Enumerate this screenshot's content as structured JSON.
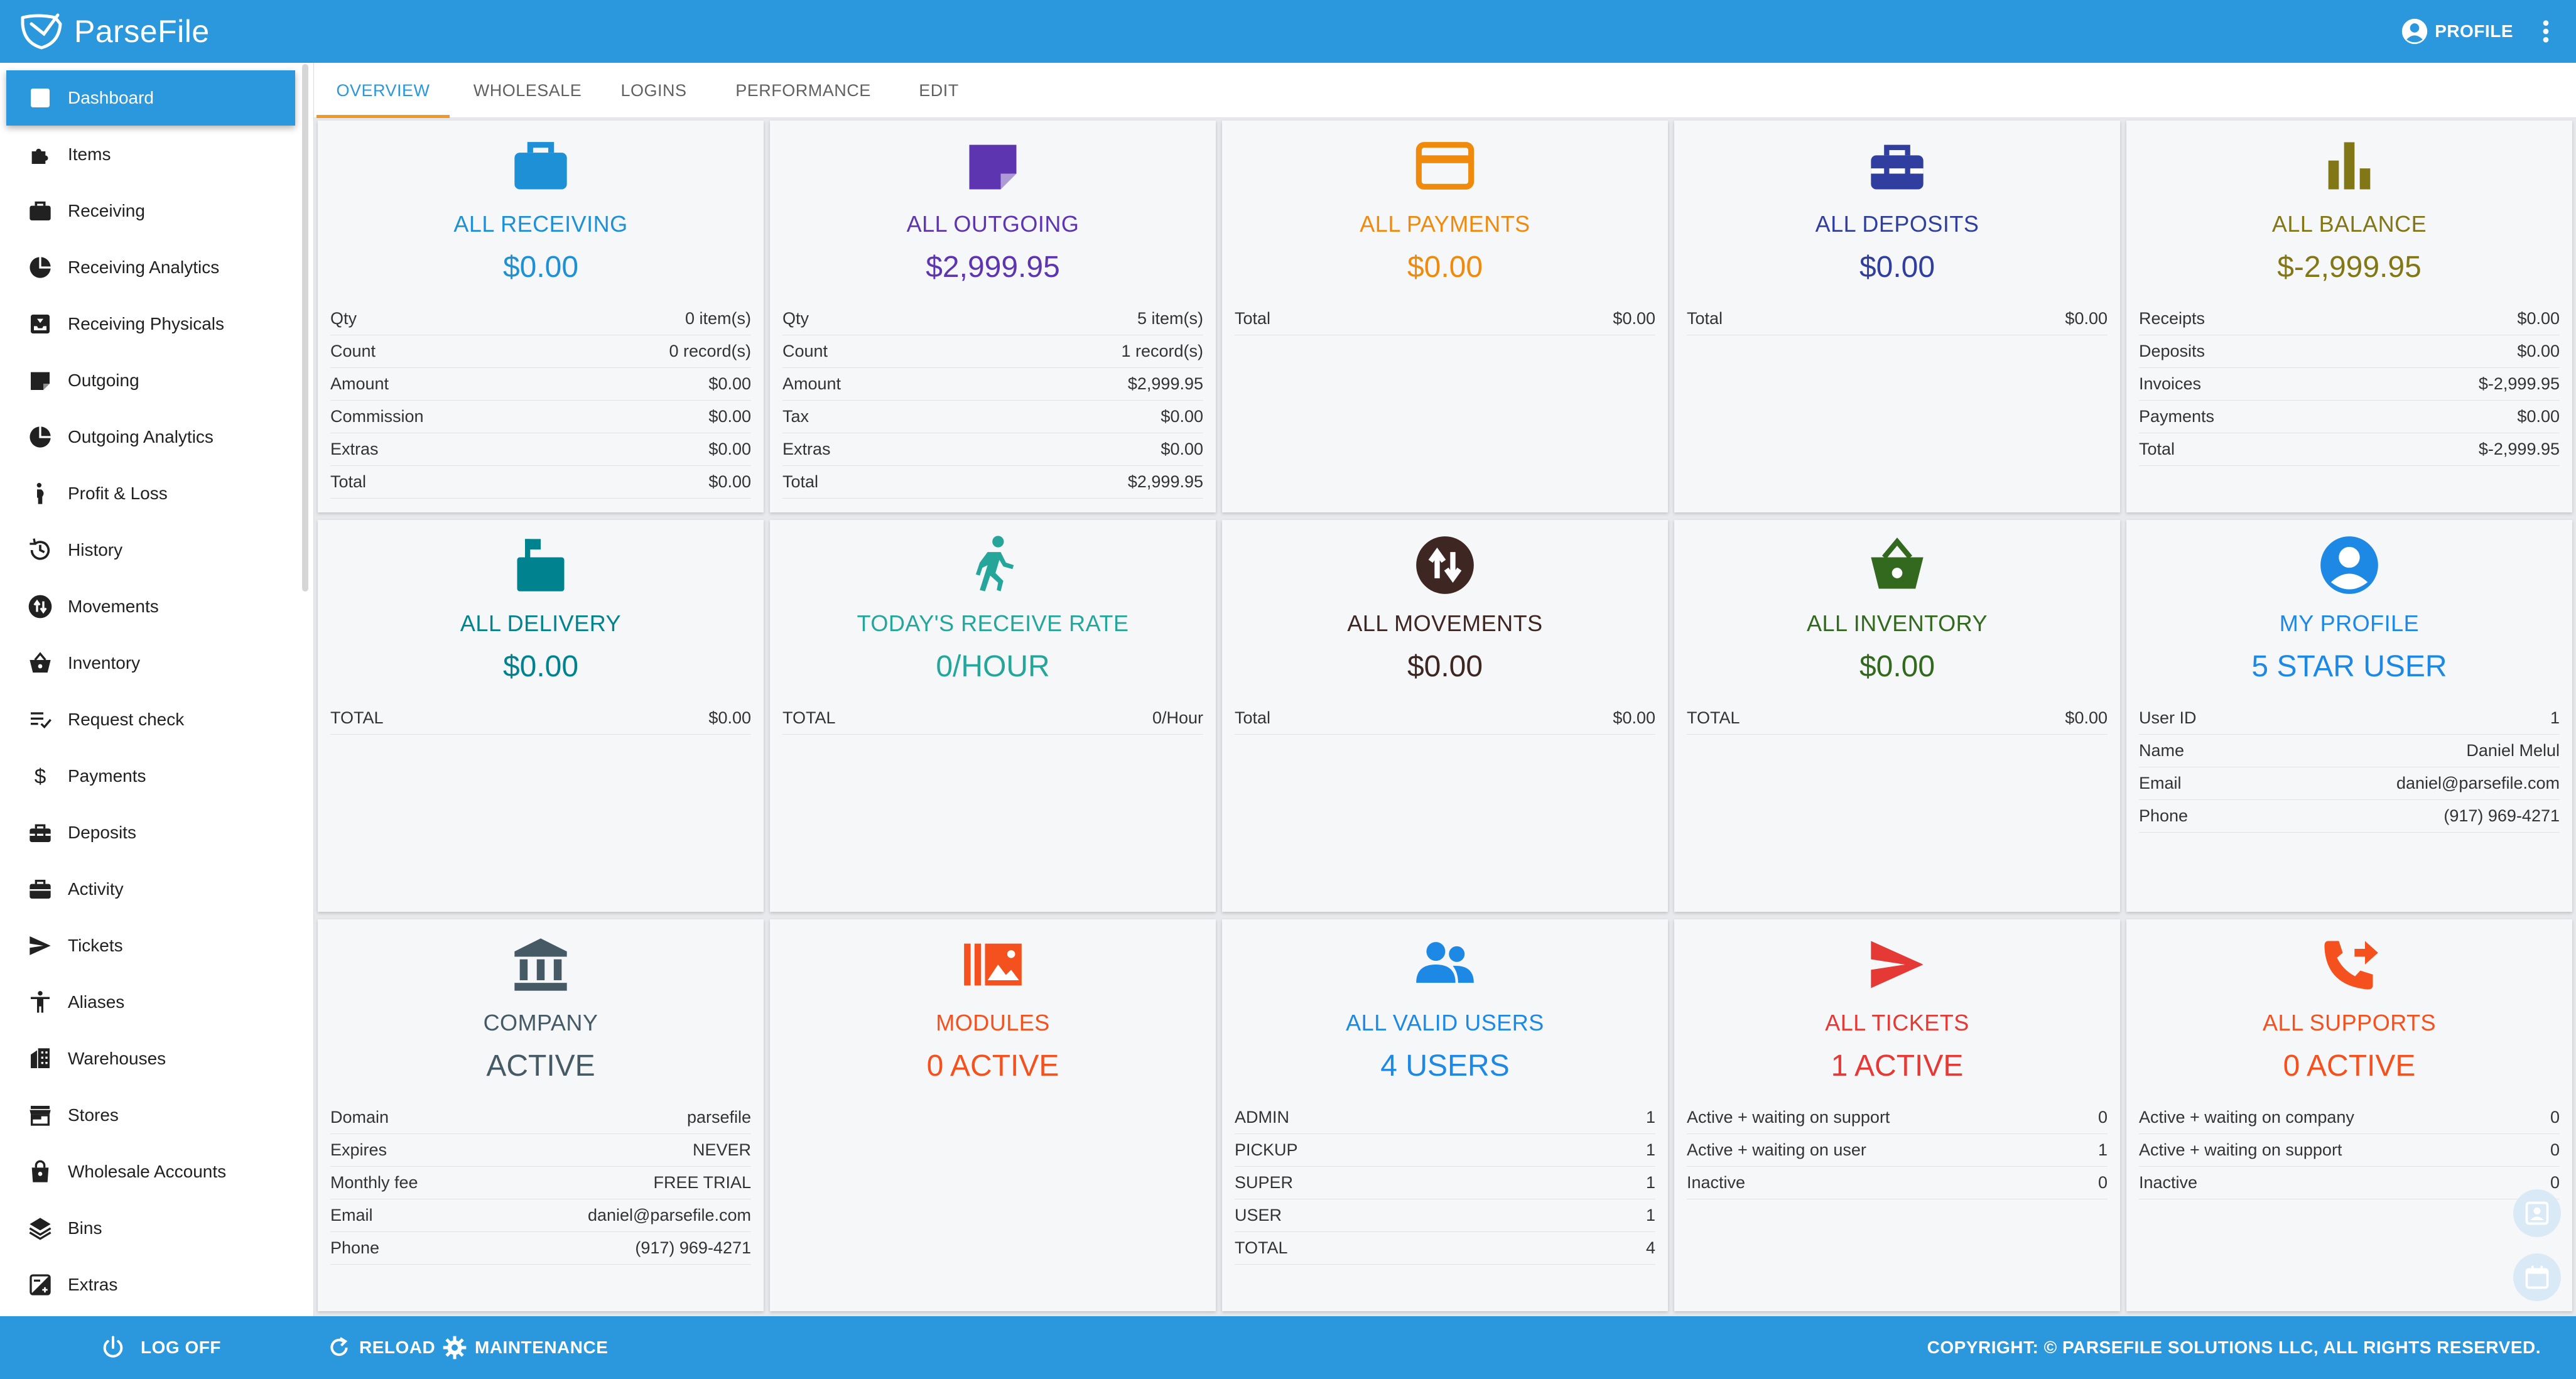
{
  "app": {
    "title": "ParseFile",
    "profile_label": "PROFILE"
  },
  "sidebar": {
    "items": [
      {
        "label": "Dashboard",
        "icon": "bar-chart-icon"
      },
      {
        "label": "Items",
        "icon": "puzzle-icon"
      },
      {
        "label": "Receiving",
        "icon": "briefcase-icon"
      },
      {
        "label": "Receiving Analytics",
        "icon": "pie-chart-icon"
      },
      {
        "label": "Receiving Physicals",
        "icon": "inbox-icon"
      },
      {
        "label": "Outgoing",
        "icon": "note-icon"
      },
      {
        "label": "Outgoing Analytics",
        "icon": "pie-chart-icon"
      },
      {
        "label": "Profit & Loss",
        "icon": "pregnant-icon"
      },
      {
        "label": "History",
        "icon": "history-icon"
      },
      {
        "label": "Movements",
        "icon": "swap-vert-icon"
      },
      {
        "label": "Inventory",
        "icon": "basket-icon"
      },
      {
        "label": "Request check",
        "icon": "list-check-icon"
      },
      {
        "label": "Payments",
        "icon": "dollar-icon"
      },
      {
        "label": "Deposits",
        "icon": "toolbox-icon"
      },
      {
        "label": "Activity",
        "icon": "work-icon"
      },
      {
        "label": "Tickets",
        "icon": "send-icon"
      },
      {
        "label": "Aliases",
        "icon": "accessibility-icon"
      },
      {
        "label": "Warehouses",
        "icon": "building-icon"
      },
      {
        "label": "Stores",
        "icon": "store-icon"
      },
      {
        "label": "Wholesale Accounts",
        "icon": "lock-bag-icon"
      },
      {
        "label": "Bins",
        "icon": "layers-icon"
      },
      {
        "label": "Extras",
        "icon": "exposure-icon"
      }
    ]
  },
  "tabs": [
    "OVERVIEW",
    "WHOLESALE",
    "LOGINS",
    "PERFORMANCE",
    "EDIT"
  ],
  "cards": [
    {
      "title": "ALL RECEIVING",
      "value": "$0.00",
      "color": "#1e90d6",
      "icon": "briefcase-icon",
      "rows": [
        [
          "Qty",
          "0 item(s)"
        ],
        [
          "Count",
          "0 record(s)"
        ],
        [
          "Amount",
          "$0.00"
        ],
        [
          "Commission",
          "$0.00"
        ],
        [
          "Extras",
          "$0.00"
        ],
        [
          "Total",
          "$0.00"
        ]
      ]
    },
    {
      "title": "ALL OUTGOING",
      "value": "$2,999.95",
      "color": "#5e35b1",
      "icon": "note-icon",
      "rows": [
        [
          "Qty",
          "5 item(s)"
        ],
        [
          "Count",
          "1 record(s)"
        ],
        [
          "Amount",
          "$2,999.95"
        ],
        [
          "Tax",
          "$0.00"
        ],
        [
          "Extras",
          "$0.00"
        ],
        [
          "Total",
          "$2,999.95"
        ]
      ]
    },
    {
      "title": "ALL PAYMENTS",
      "value": "$0.00",
      "color": "#f08a0c",
      "icon": "credit-card-icon",
      "rows": [
        [
          "Total",
          "$0.00"
        ]
      ]
    },
    {
      "title": "ALL DEPOSITS",
      "value": "$0.00",
      "color": "#303f9f",
      "icon": "toolbox-icon",
      "rows": [
        [
          "Total",
          "$0.00"
        ]
      ]
    },
    {
      "title": "ALL BALANCE",
      "value": "$-2,999.95",
      "color": "#827717",
      "icon": "bar-chart-icon",
      "rows": [
        [
          "Receipts",
          "$0.00"
        ],
        [
          "Deposits",
          "$0.00"
        ],
        [
          "Invoices",
          "$-2,999.95"
        ],
        [
          "Payments",
          "$0.00"
        ],
        [
          "Total",
          "$-2,999.95"
        ]
      ]
    },
    {
      "title": "ALL DELIVERY",
      "value": "$0.00",
      "color": "#00838f",
      "icon": "mailbox-icon",
      "rows": [
        [
          "TOTAL",
          "$0.00"
        ]
      ]
    },
    {
      "title": "TODAY'S RECEIVE RATE",
      "value": "0/HOUR",
      "color": "#26a69a",
      "icon": "runner-icon",
      "rows": [
        [
          "TOTAL",
          "0/Hour"
        ]
      ]
    },
    {
      "title": "ALL MOVEMENTS",
      "value": "$0.00",
      "color": "#3e2723",
      "icon": "swap-vert-icon",
      "rows": [
        [
          "Total",
          "$0.00"
        ]
      ]
    },
    {
      "title": "ALL INVENTORY",
      "value": "$0.00",
      "color": "#33691e",
      "icon": "basket-icon",
      "rows": [
        [
          "TOTAL",
          "$0.00"
        ]
      ]
    },
    {
      "title": "MY PROFILE",
      "value": "5 STAR USER",
      "color": "#1e88e5",
      "icon": "account-circle-icon",
      "rows": [
        [
          "User ID",
          "1"
        ],
        [
          "Name",
          "Daniel Melul"
        ],
        [
          "Email",
          "daniel@parsefile.com"
        ],
        [
          "Phone",
          "(917) 969-4271"
        ]
      ]
    },
    {
      "title": "COMPANY",
      "value": "ACTIVE",
      "color": "#455a64",
      "icon": "bank-icon",
      "rows": [
        [
          "Domain",
          "parsefile"
        ],
        [
          "Expires",
          "NEVER"
        ],
        [
          "Monthly fee",
          "FREE TRIAL"
        ],
        [
          "Email",
          "daniel@parsefile.com"
        ],
        [
          "Phone",
          "(917) 969-4271"
        ]
      ]
    },
    {
      "title": "MODULES",
      "value": "0 ACTIVE",
      "color": "#f4511e",
      "icon": "collections-icon",
      "rows": []
    },
    {
      "title": "ALL VALID USERS",
      "value": "4 USERS",
      "color": "#1e88e5",
      "icon": "group-icon",
      "rows": [
        [
          "ADMIN",
          "1"
        ],
        [
          "PICKUP",
          "1"
        ],
        [
          "SUPER",
          "1"
        ],
        [
          "USER",
          "1"
        ],
        [
          "TOTAL",
          "4"
        ]
      ]
    },
    {
      "title": "ALL TICKETS",
      "value": "1 ACTIVE",
      "color": "#e53935",
      "icon": "send-icon",
      "rows": [
        [
          "Active + waiting on support",
          "0"
        ],
        [
          "Active + waiting on user",
          "1"
        ],
        [
          "Inactive",
          "0"
        ]
      ]
    },
    {
      "title": "ALL SUPPORTS",
      "value": "0 ACTIVE",
      "color": "#f4511e",
      "icon": "phone-forward-icon",
      "rows": [
        [
          "Active + waiting on company",
          "0"
        ],
        [
          "Active + waiting on support",
          "0"
        ],
        [
          "Inactive",
          "0"
        ]
      ]
    }
  ],
  "footer": {
    "logoff": "LOG OFF",
    "reload": "RELOAD",
    "maintenance": "MAINTENANCE",
    "copyright": "COPYRIGHT: © PARSEFILE SOLUTIONS LLC, ALL RIGHTS RESERVED."
  },
  "colors": {
    "accent": "#2b97dc",
    "tab_indicator": "#ef9a28"
  }
}
